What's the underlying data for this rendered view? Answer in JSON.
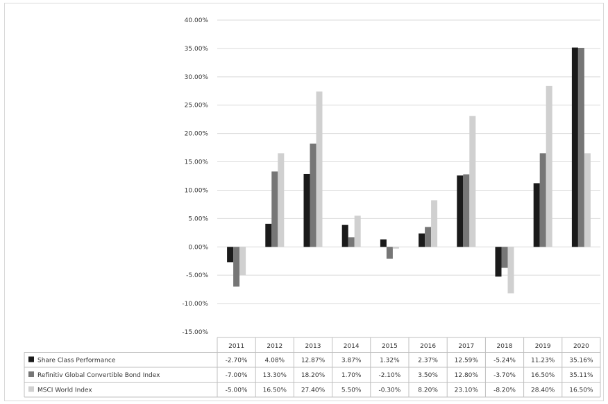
{
  "chart_data": {
    "type": "bar",
    "categories": [
      "2011",
      "2012",
      "2013",
      "2014",
      "2015",
      "2016",
      "2017",
      "2018",
      "2019",
      "2020"
    ],
    "y_ticks": [
      "40.00%",
      "35.00%",
      "30.00%",
      "25.00%",
      "20.00%",
      "15.00%",
      "10.00%",
      "5.00%",
      "0.00%",
      "-5.00%",
      "-10.00%",
      "-15.00%"
    ],
    "ylim": [
      -15,
      40
    ],
    "grid": true,
    "legend": "data-table-below",
    "series": [
      {
        "name": "Share Class Performance",
        "color": "#1a1a1a",
        "values": [
          -2.7,
          4.08,
          12.87,
          3.87,
          1.32,
          2.37,
          12.59,
          -5.24,
          11.23,
          35.16
        ],
        "labels": [
          "-2.70%",
          "4.08%",
          "12.87%",
          "3.87%",
          "1.32%",
          "2.37%",
          "12.59%",
          "-5.24%",
          "11.23%",
          "35.16%"
        ]
      },
      {
        "name": "Refinitiv Global Convertible Bond Index",
        "color": "#767676",
        "values": [
          -7.0,
          13.3,
          18.2,
          1.7,
          -2.1,
          3.5,
          12.8,
          -3.7,
          16.5,
          35.11
        ],
        "labels": [
          "-7.00%",
          "13.30%",
          "18.20%",
          "1.70%",
          "-2.10%",
          "3.50%",
          "12.80%",
          "-3.70%",
          "16.50%",
          "35.11%"
        ]
      },
      {
        "name": "MSCI World Index",
        "color": "#d0d0d0",
        "values": [
          -5.0,
          16.5,
          27.4,
          5.5,
          -0.3,
          8.2,
          23.1,
          -8.2,
          28.4,
          16.5
        ],
        "labels": [
          "-5.00%",
          "16.50%",
          "27.40%",
          "5.50%",
          "-0.30%",
          "8.20%",
          "23.10%",
          "-8.20%",
          "28.40%",
          "16.50%"
        ]
      }
    ]
  }
}
